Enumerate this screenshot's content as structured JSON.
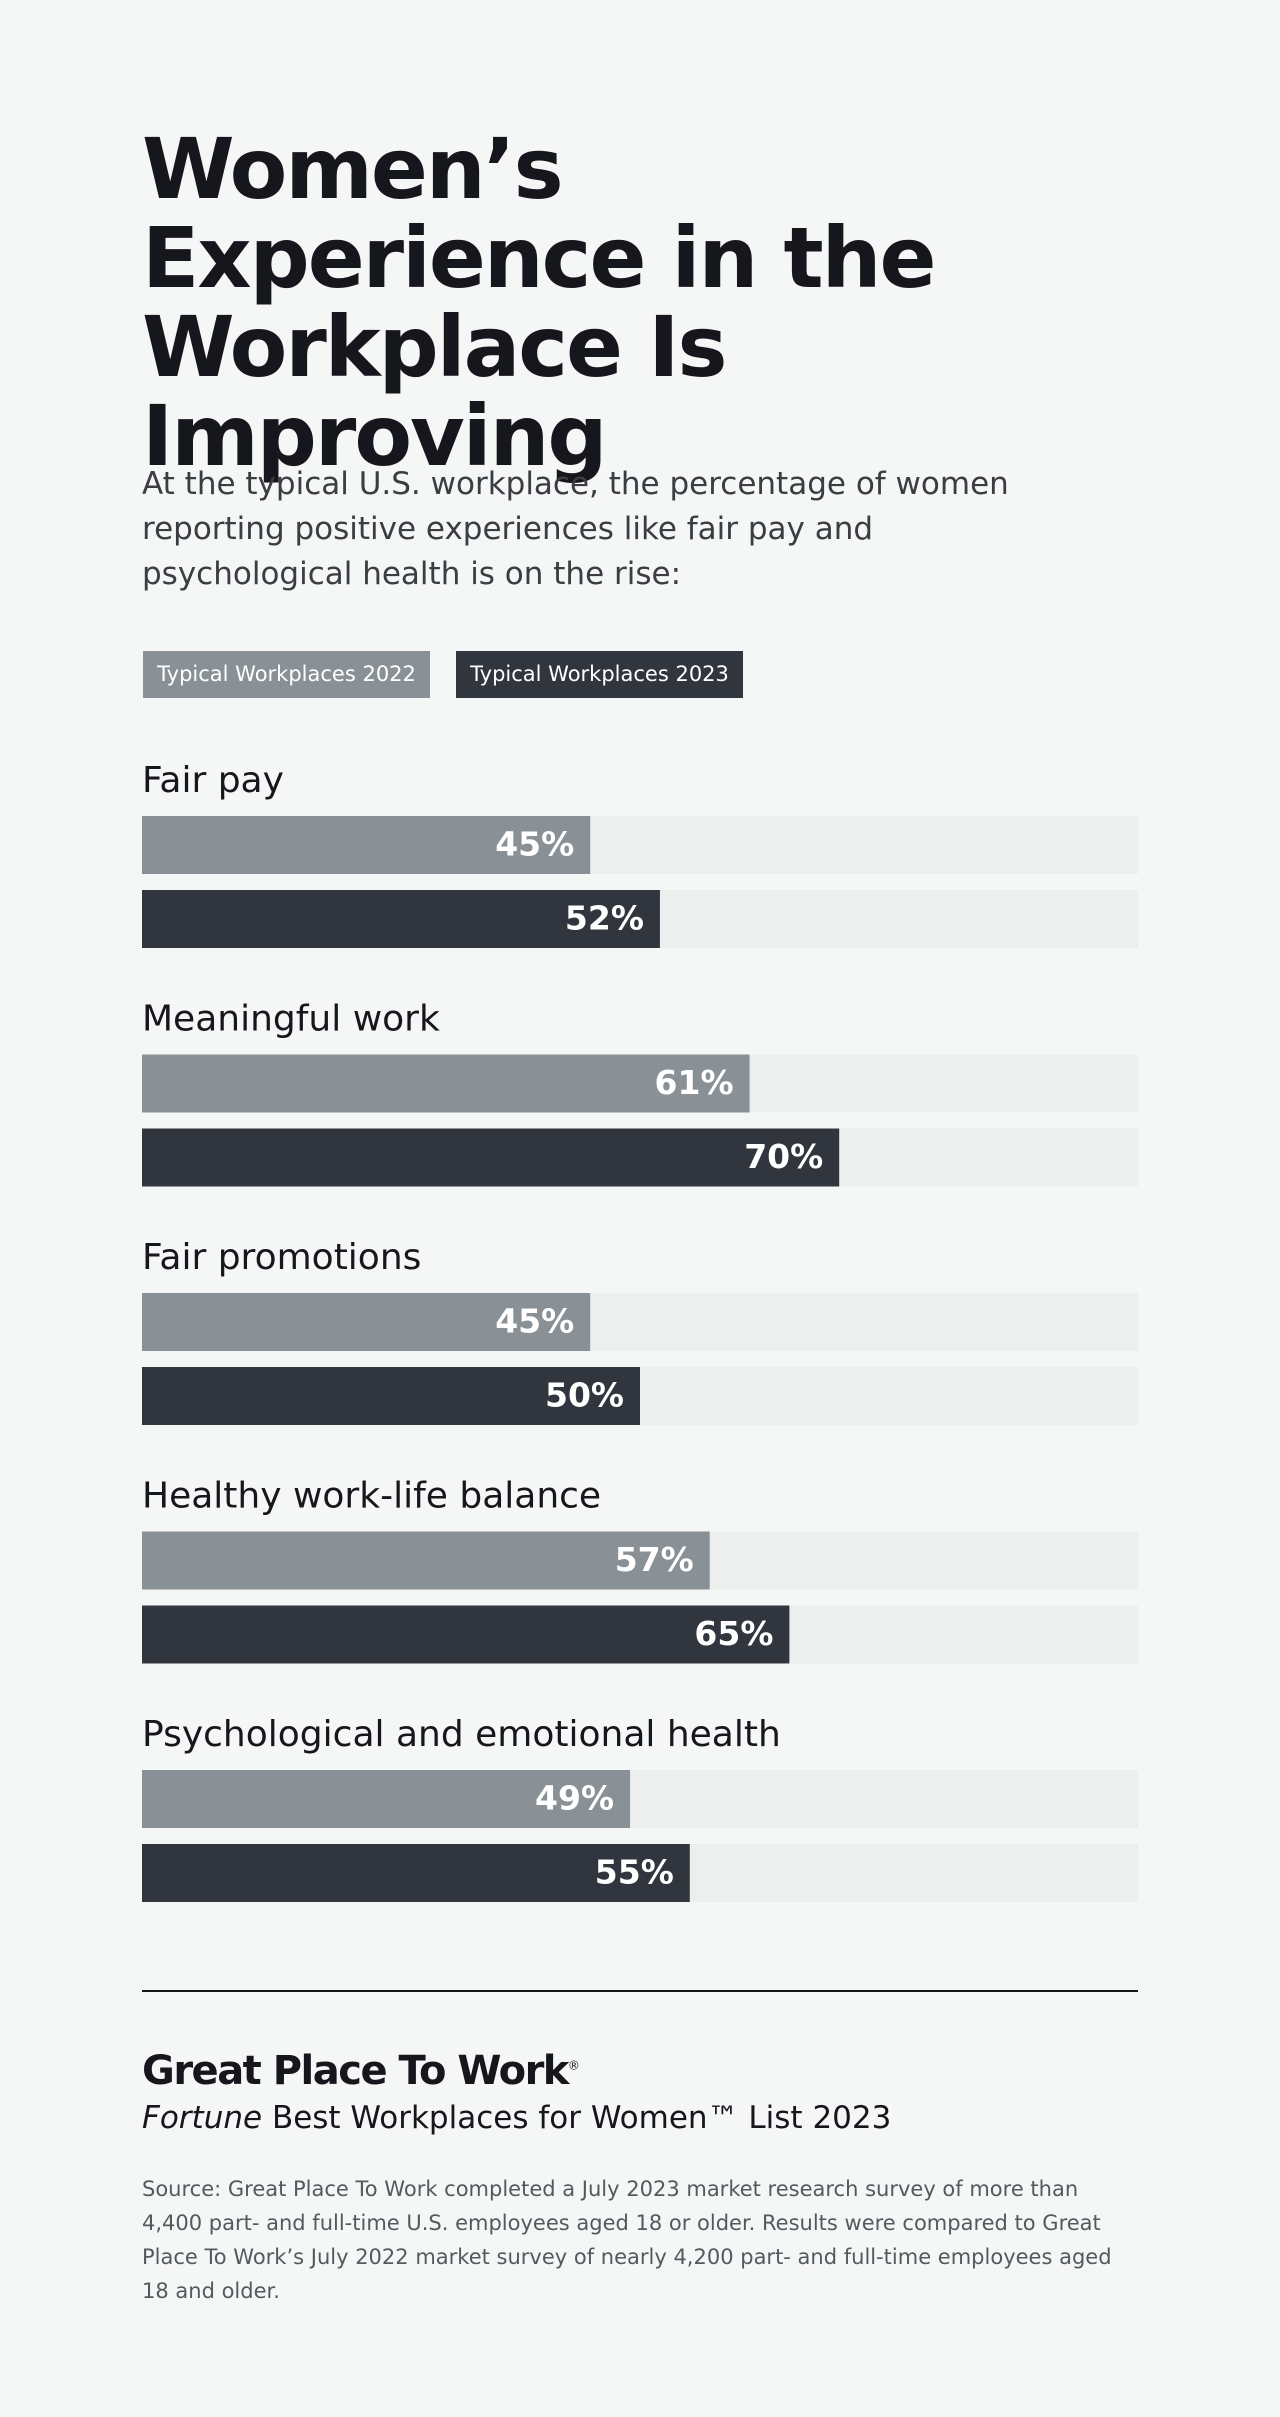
{
  "title": "Women’s Experience in the Workplace Is Improving",
  "subtitle": "At the typical U.S. workplace, the percentage of women reporting positive experiences like fair pay and psychological health is on the rise:",
  "chart_data": {
    "type": "bar",
    "orientation": "horizontal",
    "categories": [
      "Fair pay",
      "Meaningful work",
      "Fair promotions",
      "Healthy work-life balance",
      "Psychological and emotional health"
    ],
    "series": [
      {
        "name": "Typical Workplaces 2022",
        "color": "#899196",
        "values": [
          45,
          61,
          45,
          57,
          49
        ],
        "value_labels": [
          "45%",
          "61%",
          "45%",
          "57%",
          "49%"
        ]
      },
      {
        "name": "Typical Workplaces 2023",
        "color": "#31363e",
        "values": [
          52,
          70,
          50,
          65,
          55
        ],
        "value_labels": [
          "52%",
          "70%",
          "50%",
          "65%",
          "55%"
        ]
      }
    ],
    "xlim": [
      0,
      100
    ],
    "track_color": "#edefef",
    "legend": "top-left"
  },
  "footer": {
    "logo": "Great Place To Work",
    "logo_mark": "®",
    "publication": "Fortune",
    "list_name": "Best Workplaces for Women™ List 2023",
    "source": "Source: Great Place To Work completed a July 2023 market research survey of more than 4,400 part- and full-time U.S. employees aged 18 or older. Results were compared to Great Place To Work’s July 2022 market survey of nearly 4,200 part- and full-time employees aged 18 and older."
  }
}
